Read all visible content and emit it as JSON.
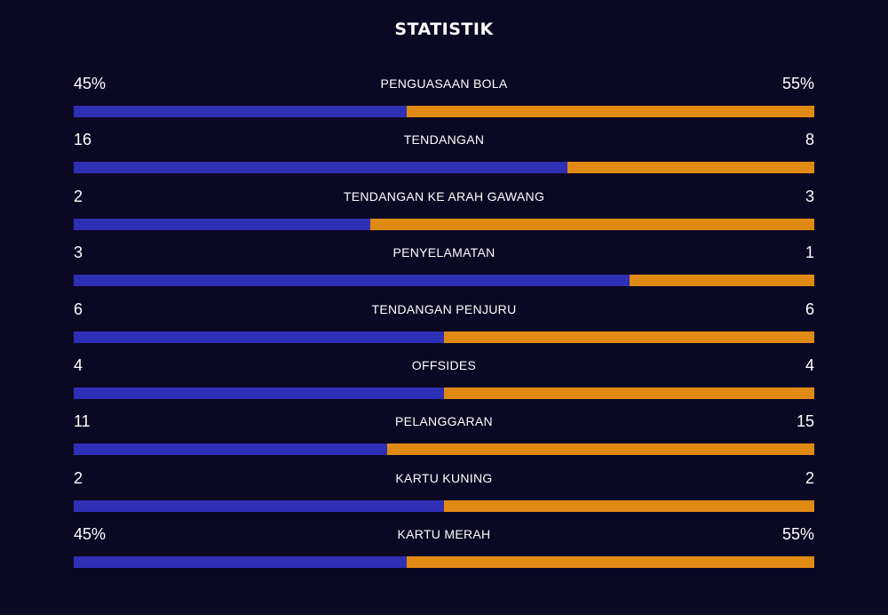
{
  "title": "STATISTIK",
  "colors": {
    "home": "#2e2fb4",
    "away": "#e08a15",
    "background": "#0a0822"
  },
  "stats": [
    {
      "label": "PENGUASAAN BOLA",
      "home": "45%",
      "away": "55%",
      "home_share": 0.45
    },
    {
      "label": "TENDANGAN",
      "home": "16",
      "away": "8",
      "home_share": 0.667
    },
    {
      "label": "TENDANGAN KE ARAH GAWANG",
      "home": "2",
      "away": "3",
      "home_share": 0.4
    },
    {
      "label": "PENYELAMATAN",
      "home": "3",
      "away": "1",
      "home_share": 0.75
    },
    {
      "label": "TENDANGAN PENJURU",
      "home": "6",
      "away": "6",
      "home_share": 0.5
    },
    {
      "label": "OFFSIDES",
      "home": "4",
      "away": "4",
      "home_share": 0.5
    },
    {
      "label": "PELANGGARAN",
      "home": "11",
      "away": "15",
      "home_share": 0.423
    },
    {
      "label": "KARTU KUNING",
      "home": "2",
      "away": "2",
      "home_share": 0.5
    },
    {
      "label": "KARTU MERAH",
      "home": "45%",
      "away": "55%",
      "home_share": 0.45
    }
  ]
}
